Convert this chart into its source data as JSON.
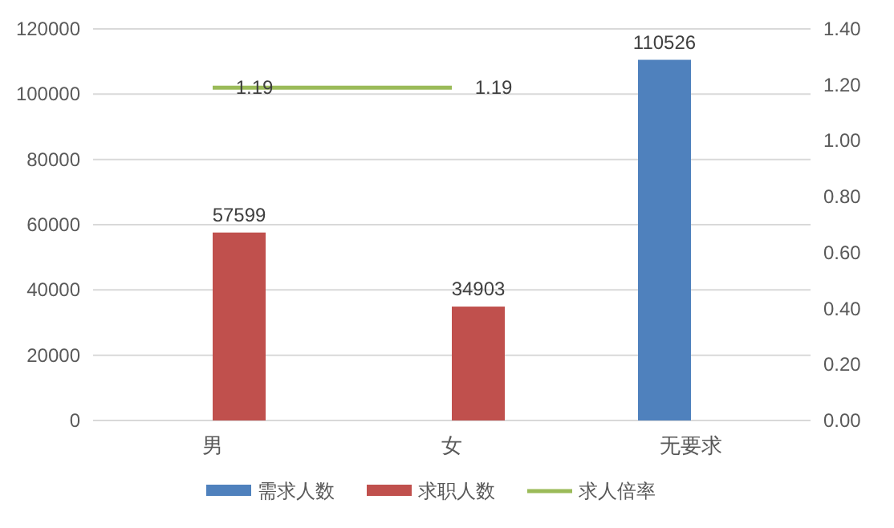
{
  "chart_data": {
    "type": "bar",
    "categories": [
      "男",
      "女",
      "无要求"
    ],
    "series": [
      {
        "name": "需求人数",
        "color": "#4f81bd",
        "values": [
          null,
          null,
          110526
        ]
      },
      {
        "name": "求职人数",
        "color": "#c0504d",
        "values": [
          57599,
          34903,
          null
        ]
      },
      {
        "name": "求人倍率",
        "color": "#9bbb59",
        "type": "line",
        "axis": "y2",
        "values": [
          1.19,
          1.19,
          null
        ]
      }
    ],
    "ylim": [
      0,
      120000
    ],
    "yticks": [
      0,
      20000,
      40000,
      60000,
      80000,
      100000,
      120000
    ],
    "y2lim": [
      0,
      1.4
    ],
    "y2ticks": [
      {
        "value": 0,
        "label": "0.00"
      },
      {
        "value": 0.2,
        "label": "0.20"
      },
      {
        "value": 0.4,
        "label": "0.40"
      },
      {
        "value": 0.6,
        "label": "0.60"
      },
      {
        "value": 0.8,
        "label": "0.80"
      },
      {
        "value": 1,
        "label": "1.00"
      },
      {
        "value": 1.2,
        "label": "1.20"
      },
      {
        "value": 1.4,
        "label": "1.40"
      }
    ],
    "grid": "y",
    "legend": "bottom",
    "data_labels": true,
    "marker": "none"
  }
}
